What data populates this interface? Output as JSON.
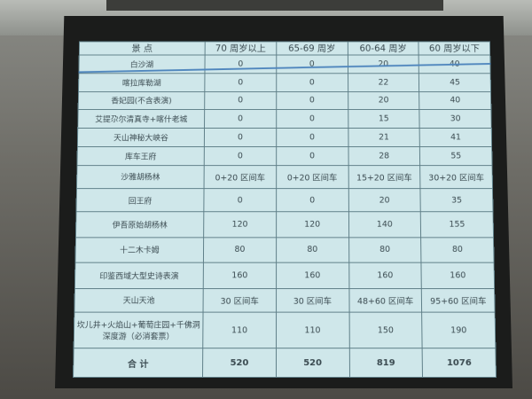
{
  "table": {
    "headers": [
      "景 点",
      "70 周岁以上",
      "65-69 周岁",
      "60-64 周岁",
      "60 周岁以下"
    ],
    "rows": [
      [
        "白沙湖",
        "0",
        "0",
        "20",
        "40"
      ],
      [
        "喀拉库勒湖",
        "0",
        "0",
        "22",
        "45"
      ],
      [
        "香妃园(不含表演)",
        "0",
        "0",
        "20",
        "40"
      ],
      [
        "艾提尕尔清真寺+喀什老城",
        "0",
        "0",
        "15",
        "30"
      ],
      [
        "天山神秘大峡谷",
        "0",
        "0",
        "21",
        "41"
      ],
      [
        "库车王府",
        "0",
        "0",
        "28",
        "55"
      ],
      [
        "沙雅胡杨林",
        "0+20 区间车",
        "0+20 区间车",
        "15+20 区间车",
        "30+20 区间车"
      ],
      [
        "回王府",
        "0",
        "0",
        "20",
        "35"
      ],
      [
        "伊吾原始胡杨林",
        "120",
        "120",
        "140",
        "155"
      ],
      [
        "十二木卡姆",
        "80",
        "80",
        "80",
        "80"
      ],
      [
        "印鉴西域大型史诗表演",
        "160",
        "160",
        "160",
        "160"
      ],
      [
        "天山天池",
        "30 区间车",
        "30 区间车",
        "48+60 区间车",
        "95+60 区间车"
      ],
      [
        "坎儿井+火焰山+葡萄庄园+千佛洞深度游（必消套票）",
        "110",
        "110",
        "150",
        "190"
      ]
    ],
    "total": [
      "合 计",
      "520",
      "520",
      "819",
      "1076"
    ]
  },
  "colors": {
    "table_bg": "#cfe7ea",
    "grid": "#5f7f88",
    "text": "#3a4a50",
    "highlight_line": "#4f86bd"
  }
}
